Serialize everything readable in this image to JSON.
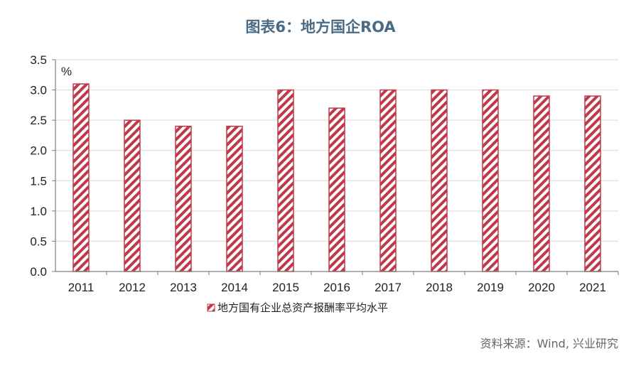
{
  "title": "图表6：地方国企ROA",
  "source": "资料来源：Wind, 兴业研究",
  "chart_data": {
    "type": "bar",
    "title": "图表6：地方国企ROA",
    "categories": [
      "2011",
      "2012",
      "2013",
      "2014",
      "2015",
      "2016",
      "2017",
      "2018",
      "2019",
      "2020",
      "2021"
    ],
    "series": [
      {
        "name": "地方国有企业总资产报酬率平均水平",
        "values": [
          3.1,
          2.5,
          2.4,
          2.4,
          3.0,
          2.7,
          3.0,
          3.0,
          3.0,
          2.9,
          2.9
        ]
      }
    ],
    "yunit": "%",
    "ylim": [
      0,
      3.5
    ],
    "yticks": [
      "0.0",
      "0.5",
      "1.0",
      "1.5",
      "2.0",
      "2.5",
      "3.0",
      "3.5"
    ],
    "grid": true,
    "legend_position": "bottom-left",
    "colors": {
      "bar_stripe": "#c0394b",
      "grid": "#d9d9d9",
      "axis": "#7f7f7f"
    }
  }
}
